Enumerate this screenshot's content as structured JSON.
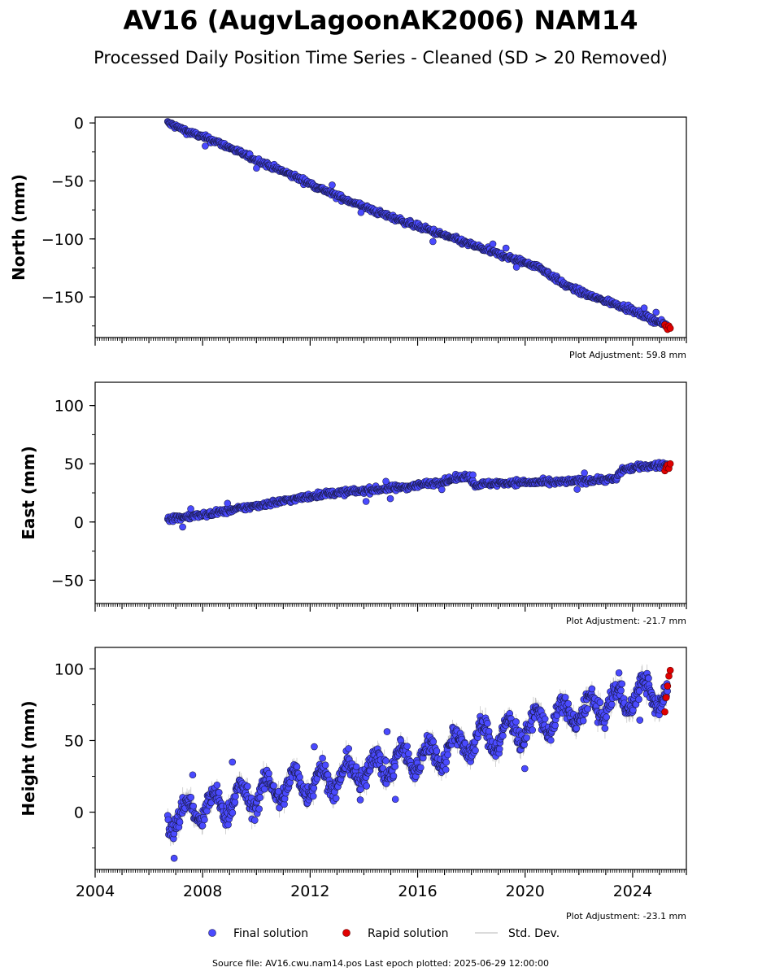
{
  "title": "AV16 (AugvLagoonAK2006) NAM14",
  "subtitle": "Processed Daily Position Time Series - Cleaned (SD > 20 Removed)",
  "legend": {
    "final": "Final solution",
    "rapid": "Rapid solution",
    "std": "Std. Dev."
  },
  "source": "Source file: AV16.cwu.nam14.pos  Last epoch plotted: 2025-06-29 12:00:00",
  "colors": {
    "final": "#4a4aff",
    "rapid": "#e00000",
    "std": "#bdbdbd",
    "outline": "#1a1a4a"
  },
  "chart_data": [
    {
      "type": "scatter",
      "panel": "north",
      "ylabel": "North (mm)",
      "adjustment": "Plot Adjustment: 59.8 mm",
      "xlim": [
        2004.0,
        2026.0
      ],
      "ylim": [
        -185,
        5
      ],
      "yticks": [
        0,
        -50,
        -100,
        -150
      ],
      "x_ticks": [
        "2004",
        "2008",
        "2012",
        "2016",
        "2020",
        "2024"
      ],
      "grid": false,
      "series": [
        {
          "name": "Final solution",
          "x": [
            2006.7,
            2007.5,
            2008.5,
            2010.0,
            2011.5,
            2013.0,
            2014.5,
            2016.0,
            2017.5,
            2019.0,
            2020.5,
            2021.5,
            2022.5,
            2023.5,
            2024.5,
            2025.3
          ],
          "y": [
            0,
            -8,
            -16,
            -32,
            -47,
            -63,
            -77,
            -89,
            -101,
            -113,
            -124,
            -140,
            -150,
            -157,
            -167,
            -175
          ]
        },
        {
          "name": "Rapid solution",
          "x": [
            2025.2,
            2025.25,
            2025.3,
            2025.35,
            2025.4
          ],
          "y": [
            -174,
            -176,
            -178,
            -175,
            -177
          ]
        }
      ]
    },
    {
      "type": "scatter",
      "panel": "east",
      "ylabel": "East (mm)",
      "adjustment": "Plot Adjustment: -21.7 mm",
      "xlim": [
        2004.0,
        2026.0
      ],
      "ylim": [
        -70,
        120
      ],
      "yticks": [
        100,
        50,
        0,
        -50
      ],
      "x_ticks": [
        "2004",
        "2008",
        "2012",
        "2016",
        "2020",
        "2024"
      ],
      "grid": false,
      "series": [
        {
          "name": "Final solution",
          "x": [
            2006.7,
            2008.0,
            2009.5,
            2011.0,
            2012.5,
            2014.0,
            2015.5,
            2017.0,
            2017.9,
            2018.1,
            2019.5,
            2021.0,
            2022.5,
            2023.4,
            2023.6,
            2024.5,
            2025.3
          ],
          "y": [
            3,
            6,
            12,
            18,
            24,
            27,
            30,
            35,
            40,
            32,
            34,
            34,
            36,
            37,
            45,
            48,
            49
          ]
        },
        {
          "name": "Rapid solution",
          "x": [
            2025.2,
            2025.25,
            2025.3,
            2025.35,
            2025.4
          ],
          "y": [
            44,
            47,
            49,
            46,
            50
          ]
        }
      ]
    },
    {
      "type": "scatter",
      "panel": "height",
      "ylabel": "Height (mm)",
      "adjustment": "Plot Adjustment: -23.1 mm",
      "xlim": [
        2004.0,
        2026.0
      ],
      "ylim": [
        -40,
        115
      ],
      "yticks": [
        100,
        50,
        0
      ],
      "x_ticks": [
        "2004",
        "2008",
        "2012",
        "2016",
        "2020",
        "2024"
      ],
      "grid": false,
      "series": [
        {
          "name": "Final solution",
          "x": [
            2006.7,
            2007.5,
            2008.5,
            2009.5,
            2010.5,
            2011.5,
            2012.5,
            2013.5,
            2014.5,
            2015.5,
            2016.5,
            2017.5,
            2018.5,
            2019.5,
            2020.5,
            2021.5,
            2022.5,
            2023.5,
            2024.5,
            2025.3
          ],
          "y": [
            -5,
            0,
            5,
            10,
            15,
            20,
            22,
            27,
            32,
            36,
            40,
            47,
            52,
            56,
            62,
            68,
            72,
            78,
            84,
            80
          ]
        },
        {
          "name": "Rapid solution",
          "x": [
            2025.2,
            2025.25,
            2025.3,
            2025.35,
            2025.4
          ],
          "y": [
            70,
            80,
            88,
            95,
            99
          ]
        }
      ]
    }
  ]
}
